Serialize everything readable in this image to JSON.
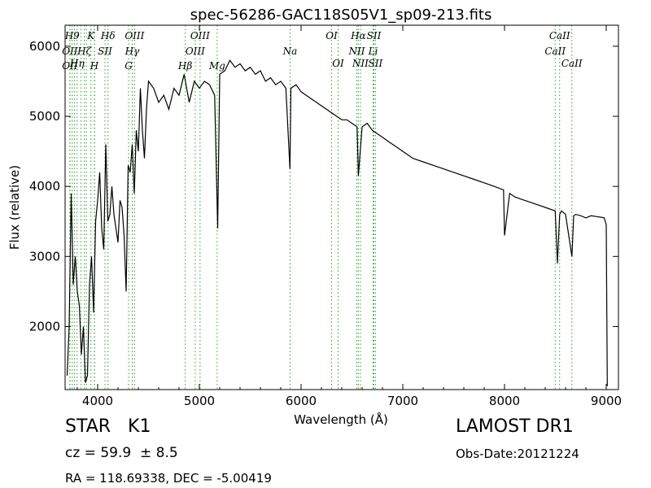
{
  "chart_data": {
    "type": "line",
    "title": "spec-56286-GAC118S05V1_sp09-213.fits",
    "xlabel": "Wavelength (Å)",
    "ylabel": "Flux (relative)",
    "xlim": [
      3680,
      9120
    ],
    "ylim": [
      1100,
      6300
    ],
    "x_ticks": [
      4000,
      5000,
      6000,
      7000,
      8000,
      9000
    ],
    "y_ticks": [
      2000,
      3000,
      4000,
      5000,
      6000
    ],
    "grid": false,
    "line_color": "#000000",
    "marker_color": "#2ca02c",
    "spectrum": {
      "x": [
        3700,
        3720,
        3740,
        3760,
        3780,
        3800,
        3820,
        3840,
        3860,
        3880,
        3900,
        3920,
        3940,
        3960,
        3980,
        4000,
        4020,
        4040,
        4060,
        4080,
        4100,
        4120,
        4140,
        4160,
        4180,
        4200,
        4220,
        4240,
        4260,
        4280,
        4300,
        4320,
        4340,
        4360,
        4380,
        4400,
        4420,
        4440,
        4460,
        4480,
        4500,
        4550,
        4600,
        4650,
        4700,
        4750,
        4800,
        4850,
        4900,
        4950,
        5000,
        5050,
        5100,
        5150,
        5180,
        5200,
        5250,
        5300,
        5350,
        5400,
        5450,
        5500,
        5550,
        5600,
        5650,
        5700,
        5750,
        5800,
        5850,
        5890,
        5900,
        5950,
        6000,
        6050,
        6100,
        6150,
        6200,
        6250,
        6300,
        6350,
        6400,
        6450,
        6500,
        6550,
        6563,
        6600,
        6650,
        6700,
        6750,
        6800,
        6850,
        6900,
        6950,
        7000,
        7100,
        7200,
        7300,
        7400,
        7500,
        7600,
        7700,
        7800,
        7900,
        7990,
        8000,
        8050,
        8100,
        8200,
        8300,
        8400,
        8498,
        8520,
        8542,
        8560,
        8600,
        8662,
        8680,
        8700,
        8750,
        8800,
        8850,
        8900,
        8950,
        8980,
        9000,
        9010
      ],
      "y": [
        1300,
        2000,
        3900,
        2600,
        3000,
        2500,
        2300,
        1600,
        2000,
        1200,
        1300,
        2600,
        3000,
        2200,
        3500,
        3800,
        4200,
        3400,
        3100,
        4600,
        3500,
        3600,
        4000,
        3600,
        3400,
        3200,
        3800,
        3700,
        3300,
        2500,
        4300,
        4200,
        4600,
        3900,
        4800,
        4500,
        5400,
        4800,
        4400,
        5100,
        5500,
        5400,
        5200,
        5300,
        5100,
        5400,
        5300,
        5600,
        5200,
        5500,
        5400,
        5500,
        5450,
        5300,
        3400,
        5600,
        5650,
        5800,
        5700,
        5750,
        5650,
        5700,
        5600,
        5650,
        5500,
        5550,
        5450,
        5500,
        5400,
        4250,
        5400,
        5450,
        5350,
        5300,
        5250,
        5200,
        5150,
        5100,
        5050,
        5000,
        4950,
        4950,
        4900,
        4850,
        4150,
        4850,
        4900,
        4800,
        4750,
        4700,
        4650,
        4600,
        4550,
        4500,
        4400,
        4350,
        4300,
        4250,
        4200,
        4150,
        4100,
        4050,
        4000,
        3950,
        3300,
        3900,
        3850,
        3800,
        3750,
        3700,
        3650,
        2900,
        3600,
        3650,
        3600,
        3000,
        3580,
        3600,
        3580,
        3550,
        3580,
        3570,
        3560,
        3550,
        3450,
        1150
      ]
    },
    "lines": [
      {
        "wl": 3727,
        "label": "OII",
        "row": 2
      },
      {
        "wl": 3727,
        "label": "OII",
        "row": 4
      },
      {
        "wl": 3750,
        "label": "H9",
        "row": 1
      },
      {
        "wl": 3771,
        "label": "",
        "row": 0
      },
      {
        "wl": 3798,
        "label": "Hη",
        "row": 3
      },
      {
        "wl": 3835,
        "label": "",
        "row": 0
      },
      {
        "wl": 3869,
        "label": "Hζ",
        "row": 2
      },
      {
        "wl": 3889,
        "label": "",
        "row": 0
      },
      {
        "wl": 3934,
        "label": "K",
        "row": 1
      },
      {
        "wl": 3968,
        "label": "H",
        "row": 4
      },
      {
        "wl": 3970,
        "label": "",
        "row": 0
      },
      {
        "wl": 4072,
        "label": "SII",
        "row": 2
      },
      {
        "wl": 4102,
        "label": "Hδ",
        "row": 1
      },
      {
        "wl": 4304,
        "label": "G",
        "row": 4
      },
      {
        "wl": 4340,
        "label": "Hγ",
        "row": 2
      },
      {
        "wl": 4363,
        "label": "OIII",
        "row": 1
      },
      {
        "wl": 4861,
        "label": "Hβ",
        "row": 4
      },
      {
        "wl": 4959,
        "label": "OIII",
        "row": 2
      },
      {
        "wl": 5007,
        "label": "OIII",
        "row": 1
      },
      {
        "wl": 5175,
        "label": "Mg",
        "row": 4
      },
      {
        "wl": 5892,
        "label": "Na",
        "row": 2
      },
      {
        "wl": 6300,
        "label": "OI",
        "row": 1
      },
      {
        "wl": 6364,
        "label": "OI",
        "row": 3
      },
      {
        "wl": 6548,
        "label": "NII",
        "row": 2
      },
      {
        "wl": 6563,
        "label": "Hα",
        "row": 1
      },
      {
        "wl": 6583,
        "label": "NII",
        "row": 3
      },
      {
        "wl": 6708,
        "label": "Li",
        "row": 2
      },
      {
        "wl": 6716,
        "label": "SII",
        "row": 1
      },
      {
        "wl": 6731,
        "label": "SII",
        "row": 3
      },
      {
        "wl": 8498,
        "label": "CaII",
        "row": 2
      },
      {
        "wl": 8542,
        "label": "CaII",
        "row": 1
      },
      {
        "wl": 8662,
        "label": "CaII",
        "row": 3
      }
    ]
  },
  "footer": {
    "class_label": "STAR   K1",
    "cz": "cz = 59.9  ± 8.5",
    "radec": "RA = 118.69338, DEC = -5.00419",
    "survey": "LAMOST DR1",
    "obs_date": "Obs-Date:20121224"
  }
}
